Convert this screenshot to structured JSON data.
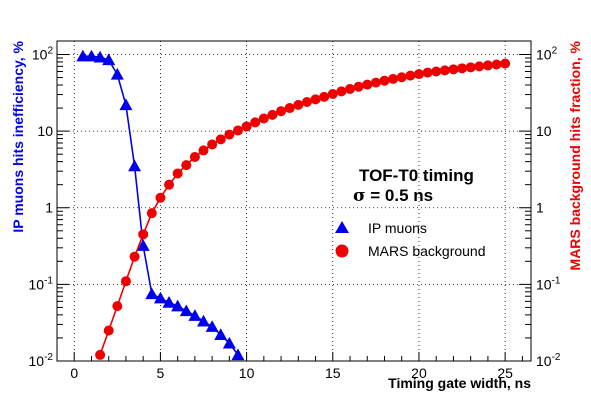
{
  "chart_data": {
    "type": "scatter",
    "title": "",
    "xlabel": "Timing gate width, ns",
    "ylabel_left": "IP muons hits inefficiency, %",
    "ylabel_right": "MARS background hits fraction, %",
    "xlim": [
      -1,
      26.5
    ],
    "ylim": [
      0.01,
      150
    ],
    "y_scale": "log",
    "grid": true,
    "x_ticks": [
      "0",
      "5",
      "10",
      "15",
      "20",
      "25"
    ],
    "y_ticks_left": [
      {
        "base": "10",
        "exp": "2"
      },
      {
        "base": "10",
        "exp": ""
      },
      {
        "base": "1",
        "exp": ""
      },
      {
        "base": "10",
        "exp": "-1"
      },
      {
        "base": "10",
        "exp": "-2"
      }
    ],
    "y_ticks_right": [
      {
        "base": "10",
        "exp": "2"
      },
      {
        "base": "10",
        "exp": ""
      },
      {
        "base": "1",
        "exp": ""
      },
      {
        "base": "10",
        "exp": "-1"
      },
      {
        "base": "10",
        "exp": "-2"
      }
    ],
    "annotation": {
      "line1": "TOF-T0 timing",
      "sigma_symbol": "σ",
      "sigma_value": " = 0.5 ns"
    },
    "legend_position": "right-middle",
    "series": [
      {
        "name": "IP muons",
        "color": "#0000ee",
        "marker": "triangle",
        "axis": "left",
        "x": [
          0.5,
          1.0,
          1.5,
          2.0,
          2.5,
          3.0,
          3.5,
          4.0,
          4.5,
          5.0,
          5.5,
          6.0,
          6.5,
          7.0,
          7.5,
          8.0,
          8.5,
          9.0,
          9.5
        ],
        "y": [
          95,
          95,
          92,
          85,
          55,
          22,
          3.5,
          0.32,
          0.075,
          0.066,
          0.058,
          0.052,
          0.045,
          0.039,
          0.033,
          0.028,
          0.022,
          0.017,
          0.012
        ]
      },
      {
        "name": "MARS background",
        "color": "#ee0000",
        "marker": "circle",
        "axis": "right",
        "x": [
          1.5,
          2.0,
          2.5,
          3.0,
          3.5,
          4.0,
          4.5,
          5.0,
          5.5,
          6.0,
          6.5,
          7.0,
          7.5,
          8.0,
          8.5,
          9.0,
          9.5,
          10.0,
          10.5,
          11.0,
          11.5,
          12.0,
          12.5,
          13.0,
          13.5,
          14.0,
          14.5,
          15.0,
          15.5,
          16.0,
          16.5,
          17.0,
          17.5,
          18.0,
          18.5,
          19.0,
          19.5,
          20.0,
          20.5,
          21.0,
          21.5,
          22.0,
          22.5,
          23.0,
          23.5,
          24.0,
          24.5,
          25.0
        ],
        "y": [
          0.012,
          0.025,
          0.052,
          0.11,
          0.23,
          0.45,
          0.85,
          1.35,
          2.0,
          2.8,
          3.6,
          4.6,
          5.6,
          6.7,
          7.8,
          9.0,
          10.2,
          11.5,
          13.0,
          14.6,
          16.3,
          18.2,
          20.0,
          22.0,
          24.0,
          26.0,
          28.0,
          30.5,
          33.0,
          35.5,
          38.0,
          40.5,
          43.0,
          45.5,
          48.0,
          50.5,
          53.0,
          55.5,
          58.0,
          60.0,
          62.0,
          64.0,
          66.0,
          68.0,
          70.0,
          72.0,
          74.0,
          76.0
        ]
      }
    ]
  }
}
